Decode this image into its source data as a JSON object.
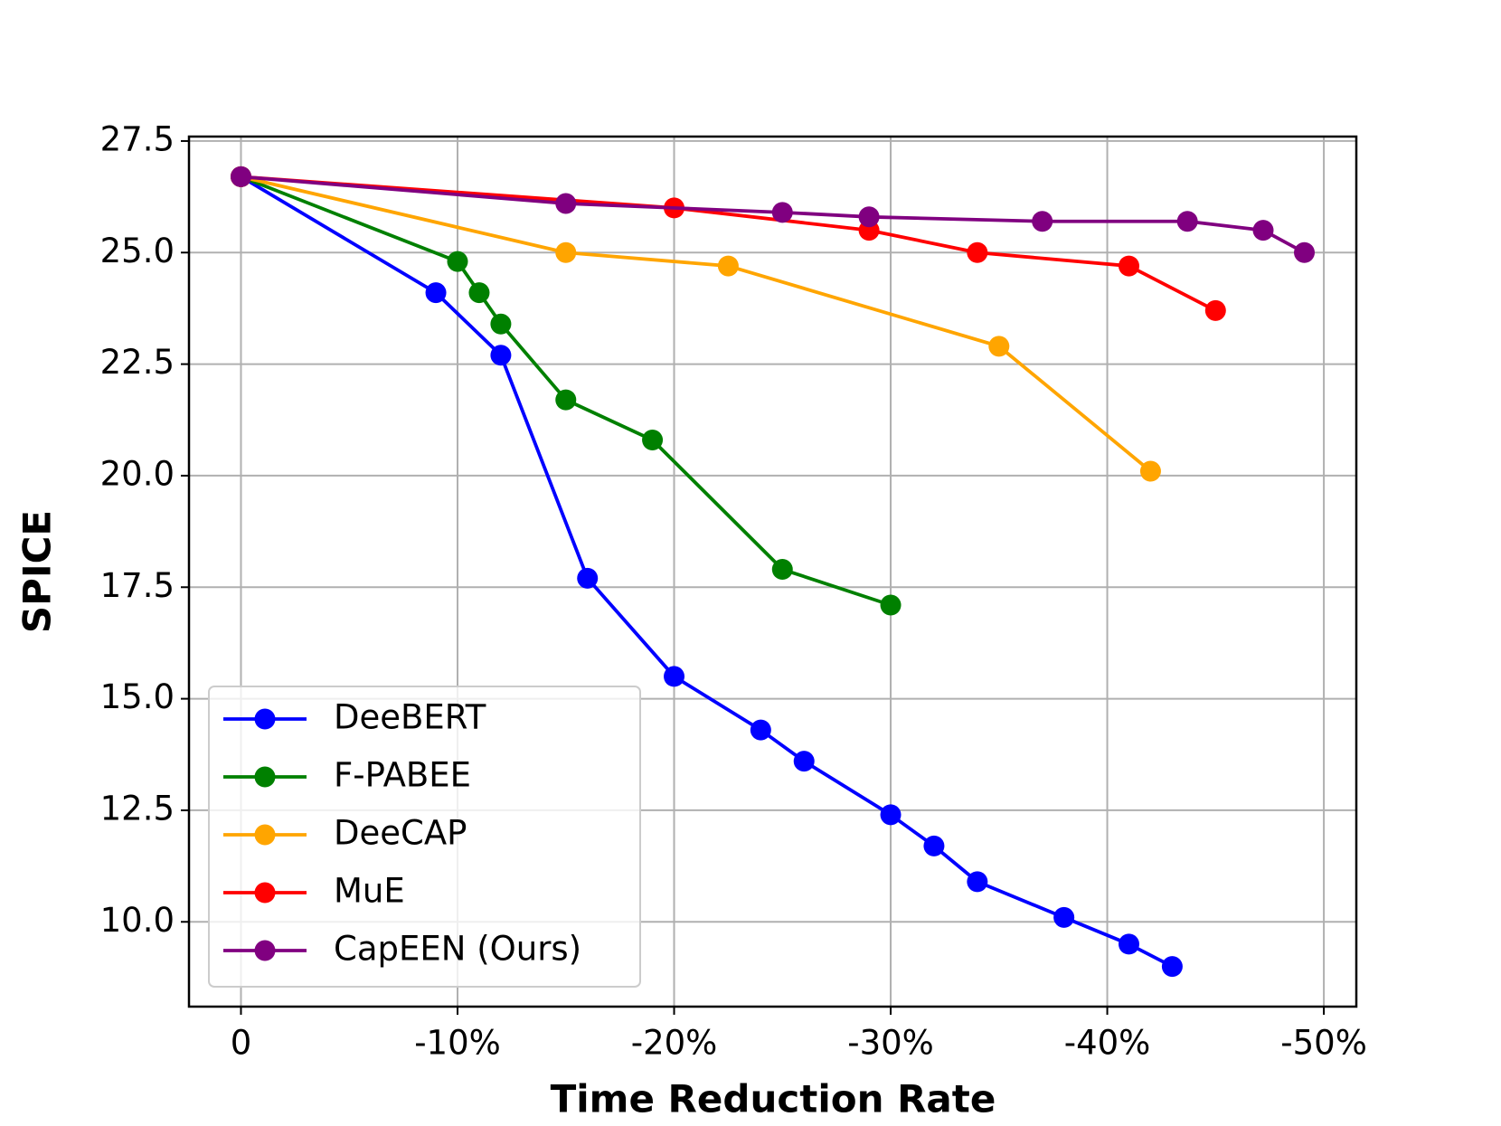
{
  "chart_data": {
    "type": "line",
    "xlabel": "Time Reduction Rate",
    "ylabel": "SPICE",
    "xlim": [
      2.4,
      -51.5
    ],
    "ylim": [
      8.1,
      27.6
    ],
    "xticks": [
      0,
      {
        "value": -10,
        "label": "-10%"
      },
      {
        "value": -20,
        "label": "-20%"
      },
      {
        "value": -30,
        "label": "-30%"
      },
      {
        "value": -40,
        "label": "-40%"
      },
      {
        "value": -50,
        "label": "-50%"
      }
    ],
    "yticks": [
      {
        "value": 10,
        "label": "10.0"
      },
      12.5,
      {
        "value": 15,
        "label": "15.0"
      },
      17.5,
      {
        "value": 20,
        "label": "20.0"
      },
      22.5,
      {
        "value": 25,
        "label": "25.0"
      },
      27.5
    ],
    "grid": true,
    "legend": "lower left",
    "series": [
      {
        "name": "DeeBERT",
        "color": "#0000ff",
        "x": [
          0,
          -9,
          -12,
          -16,
          -20,
          -24,
          -26,
          -30,
          -32,
          -34,
          -38,
          -41,
          -43
        ],
        "values": [
          26.7,
          24.1,
          22.7,
          17.7,
          15.5,
          14.3,
          13.6,
          12.4,
          11.7,
          10.9,
          10.1,
          9.5,
          9.0
        ]
      },
      {
        "name": "F-PABEE",
        "color": "#008000",
        "x": [
          0,
          -10,
          -11,
          -12,
          -15,
          -19,
          -25,
          -30
        ],
        "values": [
          26.7,
          24.8,
          24.1,
          23.4,
          21.7,
          20.8,
          17.9,
          17.1
        ]
      },
      {
        "name": "DeeCAP",
        "color": "#ffa500",
        "x": [
          0,
          -15,
          -22.5,
          -35,
          -42
        ],
        "values": [
          26.7,
          25.0,
          24.7,
          22.9,
          20.1
        ]
      },
      {
        "name": "MuE",
        "color": "#ff0000",
        "x": [
          0,
          -20,
          -29,
          -34,
          -41,
          -45
        ],
        "values": [
          26.7,
          26.0,
          25.5,
          25.0,
          24.7,
          23.7
        ]
      },
      {
        "name": "CapEEN (Ours)",
        "color": "#800080",
        "x": [
          0,
          -15,
          -25,
          -29,
          -37,
          -43.7,
          -47.2,
          -49.1
        ],
        "values": [
          26.7,
          26.1,
          25.9,
          25.8,
          25.7,
          25.7,
          25.5,
          25.0
        ]
      }
    ]
  }
}
